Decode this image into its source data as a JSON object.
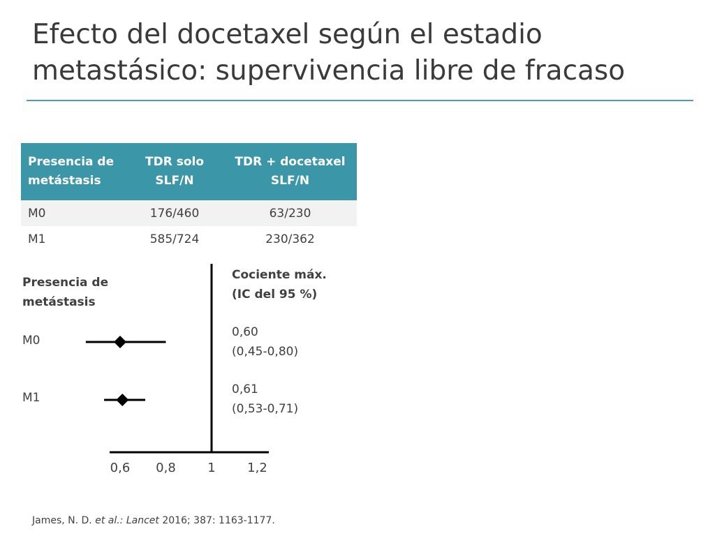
{
  "slide": {
    "title": "Efecto del docetaxel según el estadio metastásico: supervivencia libre de fracaso",
    "reference": {
      "authors": "James, N. D. ",
      "etal": "et al.: Lancet",
      "rest": " 2016; 387: 1163-1177."
    }
  },
  "table": {
    "headers": [
      "Presencia de metástasis",
      "TDR solo SLF/N",
      "TDR + docetaxel SLF/N"
    ],
    "rows": [
      [
        "M0",
        "176/460",
        "63/230"
      ],
      [
        "M1",
        "585/724",
        "230/362"
      ]
    ]
  },
  "plot_labels": {
    "left_header": "Presencia de metástasis",
    "right_header": "Cociente máx. (IC del 95 %)"
  },
  "chart_data": {
    "type": "forest",
    "xlabel": "",
    "ylabel": "",
    "x_ticks": [
      0.6,
      0.8,
      1,
      1.2
    ],
    "x_tick_labels": [
      "0,6",
      "0,8",
      "1",
      "1,2"
    ],
    "xlim": [
      0.6,
      1.2
    ],
    "reference_line": 1,
    "rows": [
      {
        "label": "M0",
        "estimate": 0.6,
        "lower": 0.45,
        "upper": 0.8,
        "text_value": "0,60",
        "text_ci": "(0,45-0,80)"
      },
      {
        "label": "M1",
        "estimate": 0.61,
        "lower": 0.53,
        "upper": 0.71,
        "text_value": "0,61",
        "text_ci": "(0,53-0,71)"
      }
    ]
  },
  "colors": {
    "header_fill": "#3b97a8",
    "rule": "#4c9cac",
    "text": "#404040",
    "marks": "#000000"
  }
}
